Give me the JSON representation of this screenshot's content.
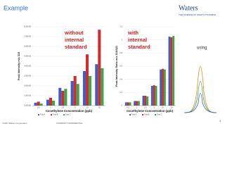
{
  "slide": {
    "title": "Example",
    "logo": "Waters",
    "tagline": "THE SCIENCE OF WHAT'S POSSIBLE.",
    "side_text": "using",
    "footer_left": "©2017 Waters Corporation",
    "footer_mid": "COMPANY CONFIDENTIAL",
    "page": "4"
  },
  "chart_data": [
    {
      "type": "bar",
      "annotation": [
        "without",
        "internal",
        "standard"
      ],
      "y_label": "Peak Intensity m/z 318",
      "x_label": "Cocethylene Concentration (ppb)",
      "categories": [
        "0.5",
        "1",
        "2.5",
        "5",
        "10",
        "20"
      ],
      "series": [
        {
          "name": "Trial A",
          "color": "#3a5fcd",
          "values": [
            30000,
            60000,
            180000,
            250000,
            350000,
            420000
          ]
        },
        {
          "name": "Trial B",
          "color": "#d62a2a",
          "values": [
            40000,
            80000,
            150000,
            300000,
            520000,
            770000
          ]
        },
        {
          "name": "Trial C",
          "color": "#3aa84a",
          "values": [
            20000,
            50000,
            170000,
            220000,
            300000,
            380000
          ]
        }
      ],
      "ylim": [
        0,
        800000
      ],
      "yticks": [
        {
          "value": 0,
          "label": "0.0E+00"
        },
        {
          "value": 100000,
          "label": "1.0E+05"
        },
        {
          "value": 200000,
          "label": "2.0E+05"
        },
        {
          "value": 300000,
          "label": "3.0E+05"
        },
        {
          "value": 400000,
          "label": "4.0E+05"
        },
        {
          "value": 500000,
          "label": "5.0E+05"
        },
        {
          "value": 600000,
          "label": "6.0E+05"
        },
        {
          "value": 700000,
          "label": "7.0E+05"
        },
        {
          "value": 800000,
          "label": "8.0E+05"
        }
      ],
      "grid": true
    },
    {
      "type": "bar",
      "annotation": [
        "with",
        "internal",
        "standard"
      ],
      "y_label": "Peak Intensity Ratio m/z 318/321",
      "x_label": "Cocethylene Concentration (ppb)",
      "categories": [
        "0.5",
        "1",
        "2.5",
        "5",
        "10",
        "20"
      ],
      "series": [
        {
          "name": "Trial A",
          "color": "#3a5fcd",
          "values": [
            0.05,
            0.07,
            0.15,
            0.3,
            0.55,
            1.05
          ]
        },
        {
          "name": "Trial B",
          "color": "#d62a2a",
          "values": [
            0.05,
            0.07,
            0.15,
            0.31,
            0.56,
            1.04
          ]
        },
        {
          "name": "Trial C",
          "color": "#3aa84a",
          "values": [
            0.05,
            0.07,
            0.14,
            0.3,
            0.55,
            1.06
          ]
        }
      ],
      "ylim": [
        0,
        1.2
      ],
      "yticks": [
        0,
        0.2,
        0.4,
        0.6,
        0.8,
        1,
        1.2
      ],
      "grid": true
    }
  ]
}
